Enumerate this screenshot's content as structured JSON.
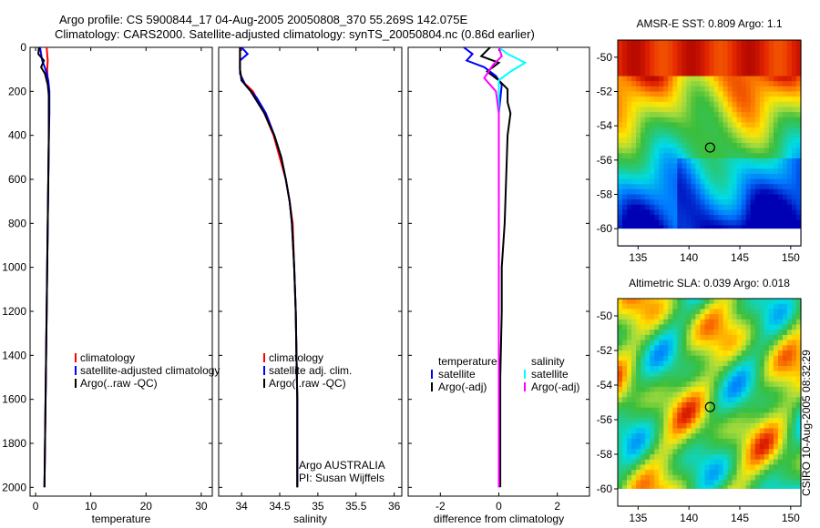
{
  "title_line1": "Argo profile: CS 5900844_17 04-Aug-2005 20050808_370 55.269S 142.075E",
  "title_line2": "Climatology: CARS2000. Satellite-adjusted climatology: synTS_20050804.nc (0.86d earlier)",
  "timestamp": "CSIRO 10-Aug-2005 08:32:29",
  "chart_data": [
    {
      "type": "line",
      "id": "temperature",
      "xlabel": "temperature",
      "xlim": [
        -1,
        32
      ],
      "xticks": [
        0,
        10,
        20,
        30
      ],
      "ylim": [
        0,
        2040
      ],
      "yticks": [
        0,
        200,
        400,
        600,
        800,
        1000,
        1200,
        1400,
        1600,
        1800,
        2000
      ],
      "legend": [
        {
          "label": "climatology",
          "color": "#ff0000"
        },
        {
          "label": "satellite-adjusted climatology",
          "color": "#0000ff"
        },
        {
          "label": "Argo(..raw -QC)",
          "color": "#000000"
        }
      ],
      "series": [
        {
          "name": "climatology",
          "color": "#ff0000",
          "points": [
            [
              2.0,
              0
            ],
            [
              2.1,
              30
            ],
            [
              2.2,
              60
            ],
            [
              2.1,
              100
            ],
            [
              2.2,
              150
            ],
            [
              2.4,
              200
            ],
            [
              2.4,
              300
            ],
            [
              2.4,
              400
            ],
            [
              2.3,
              600
            ],
            [
              2.2,
              800
            ],
            [
              2.1,
              1000
            ],
            [
              2.0,
              1200
            ],
            [
              1.9,
              1400
            ],
            [
              1.8,
              1600
            ],
            [
              1.7,
              1800
            ],
            [
              1.6,
              2000
            ]
          ]
        },
        {
          "name": "satellite-adjusted climatology",
          "color": "#0000ff",
          "points": [
            [
              0.8,
              0
            ],
            [
              1.0,
              30
            ],
            [
              1.2,
              60
            ],
            [
              1.8,
              100
            ],
            [
              2.3,
              150
            ],
            [
              2.5,
              200
            ],
            [
              2.5,
              300
            ],
            [
              2.4,
              400
            ],
            [
              2.3,
              600
            ],
            [
              2.2,
              800
            ],
            [
              2.1,
              1000
            ],
            [
              2.0,
              1200
            ],
            [
              1.9,
              1400
            ],
            [
              1.8,
              1600
            ],
            [
              1.7,
              1800
            ],
            [
              1.6,
              2000
            ]
          ]
        },
        {
          "name": "Argo(..raw -QC)",
          "color": "#000000",
          "points": [
            [
              0.6,
              0
            ],
            [
              0.5,
              30
            ],
            [
              1.5,
              60
            ],
            [
              1.0,
              90
            ],
            [
              1.7,
              120
            ],
            [
              2.2,
              170
            ],
            [
              2.4,
              220
            ],
            [
              2.4,
              300
            ],
            [
              2.4,
              400
            ],
            [
              2.3,
              600
            ],
            [
              2.2,
              800
            ],
            [
              2.1,
              1000
            ],
            [
              2.0,
              1200
            ],
            [
              1.9,
              1400
            ],
            [
              1.8,
              1600
            ],
            [
              1.7,
              1800
            ],
            [
              1.6,
              2000
            ]
          ]
        }
      ]
    },
    {
      "type": "line",
      "id": "salinity",
      "xlabel": "salinity",
      "xlim": [
        33.7,
        36.1
      ],
      "xticks": [
        34,
        34.5,
        35,
        35.5,
        36
      ],
      "ylim": [
        0,
        2040
      ],
      "yticks": [
        0,
        200,
        400,
        600,
        800,
        1000,
        1200,
        1400,
        1600,
        1800,
        2000
      ],
      "legend": [
        {
          "label": "climatology",
          "color": "#ff0000"
        },
        {
          "label": "satellite adj. clim.",
          "color": "#0000ff"
        },
        {
          "label": "Argo(..raw -QC)",
          "color": "#000000"
        }
      ],
      "annotation": [
        "Argo AUSTRALIA",
        "PI: Susan Wijffels"
      ],
      "series": [
        {
          "name": "climatology",
          "color": "#ff0000",
          "points": [
            [
              33.98,
              0
            ],
            [
              33.98,
              100
            ],
            [
              34.0,
              150
            ],
            [
              34.15,
              200
            ],
            [
              34.3,
              300
            ],
            [
              34.42,
              400
            ],
            [
              34.5,
              500
            ],
            [
              34.58,
              600
            ],
            [
              34.63,
              700
            ],
            [
              34.67,
              800
            ],
            [
              34.69,
              1000
            ],
            [
              34.71,
              1200
            ],
            [
              34.72,
              1400
            ],
            [
              34.73,
              1600
            ],
            [
              34.73,
              1800
            ],
            [
              34.73,
              2000
            ]
          ]
        },
        {
          "name": "satellite adj. clim.",
          "color": "#0000ff",
          "points": [
            [
              34.0,
              0
            ],
            [
              34.08,
              30
            ],
            [
              33.98,
              60
            ],
            [
              33.98,
              120
            ],
            [
              34.05,
              170
            ],
            [
              34.2,
              230
            ],
            [
              34.32,
              300
            ],
            [
              34.43,
              400
            ],
            [
              34.52,
              500
            ],
            [
              34.58,
              600
            ],
            [
              34.63,
              700
            ],
            [
              34.66,
              800
            ],
            [
              34.69,
              1000
            ],
            [
              34.71,
              1200
            ],
            [
              34.72,
              1400
            ],
            [
              34.73,
              1600
            ],
            [
              34.73,
              1800
            ],
            [
              34.73,
              2000
            ]
          ]
        },
        {
          "name": "Argo(..raw -QC)",
          "color": "#000000",
          "points": [
            [
              33.98,
              0
            ],
            [
              33.98,
              100
            ],
            [
              34.0,
              150
            ],
            [
              34.12,
              200
            ],
            [
              34.3,
              300
            ],
            [
              34.43,
              400
            ],
            [
              34.52,
              500
            ],
            [
              34.58,
              600
            ],
            [
              34.63,
              700
            ],
            [
              34.66,
              800
            ],
            [
              34.69,
              1000
            ],
            [
              34.71,
              1200
            ],
            [
              34.72,
              1400
            ],
            [
              34.73,
              1600
            ],
            [
              34.73,
              1800
            ],
            [
              34.73,
              2000
            ]
          ]
        }
      ]
    },
    {
      "type": "line",
      "id": "difference",
      "xlabel": "difference from climatology",
      "xlim": [
        -3.1,
        3.1
      ],
      "xticks": [
        -2,
        0,
        2
      ],
      "ylim": [
        0,
        2040
      ],
      "yticks": [
        0,
        200,
        400,
        600,
        800,
        1000,
        1200,
        1400,
        1600,
        1800,
        2000
      ],
      "legend_temperature": {
        "heading": "temperature",
        "entries": [
          {
            "label": "satellite",
            "color": "#0000ff"
          },
          {
            "label": "Argo(-adj)",
            "color": "#000000"
          }
        ]
      },
      "legend_salinity": {
        "heading": "salinity",
        "entries": [
          {
            "label": "satellite",
            "color": "#00ffff"
          },
          {
            "label": "Argo(-adj)",
            "color": "#ff00ff"
          }
        ]
      },
      "series": [
        {
          "name": "temperature satellite",
          "color": "#0000ff",
          "points": [
            [
              -1.2,
              0
            ],
            [
              -0.9,
              30
            ],
            [
              -1.1,
              60
            ],
            [
              -0.5,
              90
            ],
            [
              -0.1,
              130
            ],
            [
              0.1,
              170
            ],
            [
              0.0,
              300
            ],
            [
              0.0,
              600
            ],
            [
              0.0,
              1000
            ],
            [
              0.0,
              1500
            ],
            [
              0.0,
              2000
            ]
          ]
        },
        {
          "name": "temperature Argo(-adj)",
          "color": "#000000",
          "points": [
            [
              -0.3,
              0
            ],
            [
              -0.6,
              40
            ],
            [
              0.0,
              70
            ],
            [
              -0.4,
              110
            ],
            [
              0.0,
              150
            ],
            [
              0.3,
              190
            ],
            [
              0.3,
              250
            ],
            [
              0.4,
              300
            ],
            [
              0.3,
              400
            ],
            [
              0.25,
              600
            ],
            [
              0.2,
              800
            ],
            [
              0.1,
              1000
            ],
            [
              0.1,
              1200
            ],
            [
              0.05,
              1500
            ],
            [
              0.05,
              2000
            ]
          ]
        },
        {
          "name": "salinity satellite",
          "color": "#00ffff",
          "points": [
            [
              0.0,
              0
            ],
            [
              0.3,
              30
            ],
            [
              0.9,
              70
            ],
            [
              0.4,
              110
            ],
            [
              0.0,
              150
            ],
            [
              0.0,
              300
            ],
            [
              0.0,
              600
            ],
            [
              0.0,
              1000
            ],
            [
              0.0,
              1500
            ],
            [
              0.0,
              2000
            ]
          ]
        },
        {
          "name": "salinity Argo(-adj)",
          "color": "#ff00ff",
          "points": [
            [
              0.0,
              0
            ],
            [
              0.1,
              40
            ],
            [
              -0.2,
              80
            ],
            [
              -0.5,
              140
            ],
            [
              -0.1,
              200
            ],
            [
              0.0,
              300
            ],
            [
              0.0,
              600
            ],
            [
              0.0,
              1000
            ],
            [
              0.0,
              1500
            ],
            [
              0.0,
              2000
            ]
          ]
        }
      ]
    },
    {
      "type": "heatmap",
      "id": "sst_map",
      "title": "AMSR-E SST: 0.809 Argo: 1.1",
      "xlim": [
        133,
        151
      ],
      "ylim": [
        -61,
        -49
      ],
      "xticks": [
        135,
        140,
        145,
        150
      ],
      "yticks": [
        -50,
        -52,
        -54,
        -56,
        -58,
        -60
      ],
      "float_location": {
        "lon": 142.075,
        "lat": -55.269
      }
    },
    {
      "type": "heatmap",
      "id": "sla_map",
      "title": "Altimetric SLA: 0.039 Argo: 0.018",
      "xlim": [
        133,
        151
      ],
      "ylim": [
        -61,
        -49
      ],
      "xticks": [
        135,
        140,
        145,
        150
      ],
      "yticks": [
        -50,
        -52,
        -54,
        -56,
        -58,
        -60
      ],
      "float_location": {
        "lon": 142.075,
        "lat": -55.269
      }
    }
  ]
}
